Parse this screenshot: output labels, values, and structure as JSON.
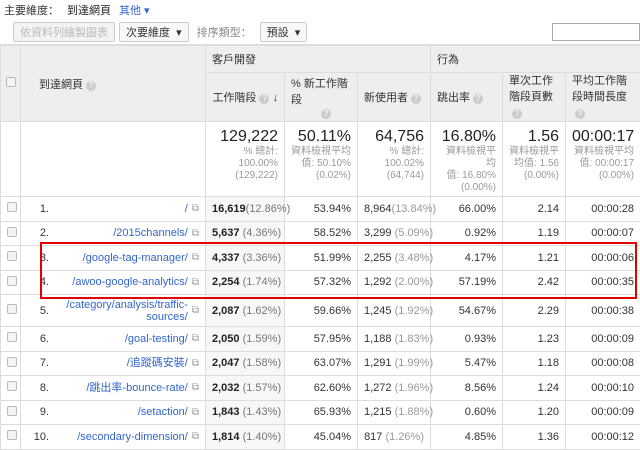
{
  "topbar": {
    "label": "主要維度：",
    "selected": "到達網頁",
    "other": "其他 ▾"
  },
  "toolbar": {
    "chart_rows": "依資料列繪製圖表",
    "secondary": "次要維度",
    "sort_label": "排序類型：",
    "sort_value": "預設"
  },
  "header": {
    "page": "到達網頁",
    "acquisition": "客戶開發",
    "behavior": "行為",
    "sessions": "工作階段",
    "new_sessions": "% 新工作階段",
    "new_users": "新使用者",
    "bounce": "跳出率",
    "pages_session": "單次工作階段頁數",
    "duration": "平均工作階段時間長度",
    "help": "?",
    "sort_arrow": "↓"
  },
  "totals": [
    {
      "v": "129,222",
      "a": "% 總計:",
      "b": "100.00%",
      "c": "(129,222)"
    },
    {
      "v": "50.11%",
      "a": "資料檢視平均",
      "b": "值: 50.10%",
      "c": "(0.02%)"
    },
    {
      "v": "64,756",
      "a": "% 總計:",
      "b": "100.02%",
      "c": "(64,744)"
    },
    {
      "v": "16.80%",
      "a": "資料檢視平均",
      "b": "值: 16.80%",
      "c": "(0.00%)"
    },
    {
      "v": "1.56",
      "a": "資料檢視平",
      "b": "均值: 1.56",
      "c": "(0.00%)"
    },
    {
      "v": "00:00:17",
      "a": "資料檢視平均",
      "b": "值: 00:00:17",
      "c": "(0.00%)"
    }
  ],
  "rows": [
    {
      "i": "1.",
      "page": "/",
      "s": "16,619",
      "sp": "(12.86%)",
      "n": "53.94%",
      "u": "8,964",
      "up": "(13.84%)",
      "b": "66.00%",
      "p": "2.14",
      "d": "00:00:28"
    },
    {
      "i": "2.",
      "page": "/2015channels/",
      "s": "5,637",
      "sp": " (4.36%)",
      "n": "58.52%",
      "u": "3,299",
      "up": " (5.09%)",
      "b": "0.92%",
      "p": "1.19",
      "d": "00:00:07"
    },
    {
      "i": "3.",
      "page": "/google-tag-manager/",
      "s": "4,337",
      "sp": " (3.36%)",
      "n": "51.99%",
      "u": "2,255",
      "up": " (3.48%)",
      "b": "4.17%",
      "p": "1.21",
      "d": "00:00:06"
    },
    {
      "i": "4.",
      "page": "/awoo-google-analytics/",
      "s": "2,254",
      "sp": " (1.74%)",
      "n": "57.32%",
      "u": "1,292",
      "up": " (2.00%)",
      "b": "57.19%",
      "p": "2.42",
      "d": "00:00:35"
    },
    {
      "i": "5.",
      "page": "/category/analysis/traffic-sources/",
      "s": "2,087",
      "sp": " (1.62%)",
      "n": "59.66%",
      "u": "1,245",
      "up": " (1.92%)",
      "b": "54.67%",
      "p": "2.29",
      "d": "00:00:38"
    },
    {
      "i": "6.",
      "page": "/goal-testing/",
      "s": "2,050",
      "sp": " (1.59%)",
      "n": "57.95%",
      "u": "1,188",
      "up": " (1.83%)",
      "b": "0.93%",
      "p": "1.23",
      "d": "00:00:09"
    },
    {
      "i": "7.",
      "page": "/追蹤碼安裝/",
      "s": "2,047",
      "sp": " (1.58%)",
      "n": "63.07%",
      "u": "1,291",
      "up": " (1.99%)",
      "b": "5.47%",
      "p": "1.18",
      "d": "00:00:08"
    },
    {
      "i": "8.",
      "page": "/跳出率-bounce-rate/",
      "s": "2,032",
      "sp": " (1.57%)",
      "n": "62.60%",
      "u": "1,272",
      "up": " (1.96%)",
      "b": "8.56%",
      "p": "1.24",
      "d": "00:00:10"
    },
    {
      "i": "9.",
      "page": "/setaction/",
      "s": "1,843",
      "sp": " (1.43%)",
      "n": "65.93%",
      "u": "1,215",
      "up": " (1.88%)",
      "b": "0.60%",
      "p": "1.20",
      "d": "00:00:09"
    },
    {
      "i": "10.",
      "page": "/secondary-dimension/",
      "s": "1,814",
      "sp": " (1.40%)",
      "n": "45.04%",
      "u": "817",
      "up": " (1.26%)",
      "b": "4.85%",
      "p": "1.36",
      "d": "00:00:12"
    }
  ],
  "highlight_color": "#e00000"
}
